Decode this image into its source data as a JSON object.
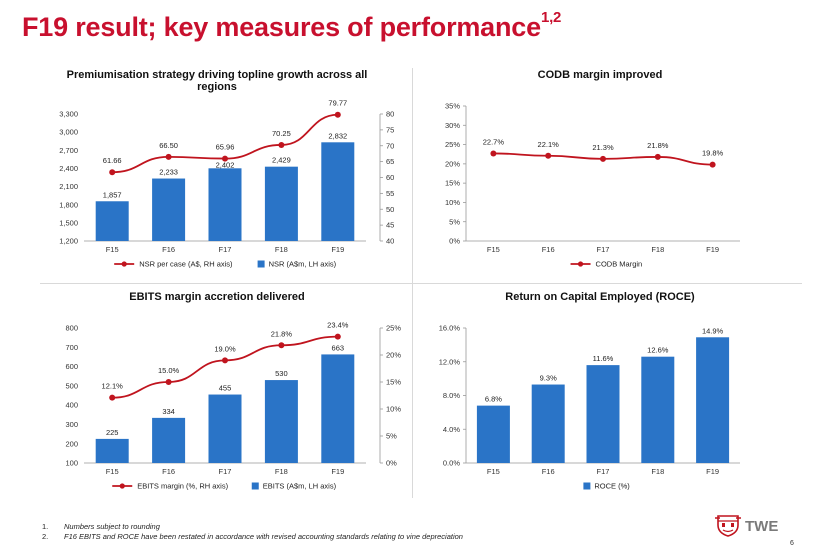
{
  "page": {
    "title": "F19 result; key measures of performance",
    "title_sup": "1,2",
    "page_number": "6",
    "logo_text": "TWE"
  },
  "footnotes": [
    {
      "num": "1.",
      "text": "Numbers subject to rounding"
    },
    {
      "num": "2.",
      "text": "F16 EBITS and ROCE have been restated in accordance with revised accounting standards relating to vine depreciation"
    }
  ],
  "colors": {
    "bar": "#2a74c7",
    "line": "#c0141e",
    "title_red": "#c8102e",
    "axis": "#999999"
  },
  "chart_data": [
    {
      "id": "nsr",
      "type": "bar+line",
      "title": [
        "Premiumisation strategy driving topline growth across all",
        "regions"
      ],
      "categories": [
        "F15",
        "F16",
        "F17",
        "F18",
        "F19"
      ],
      "bar_series": {
        "name": "NSR (A$m, LH axis)",
        "values": [
          1857,
          2233,
          2402,
          2429,
          2832
        ],
        "labels": [
          "1,857",
          "2,233",
          "2,402",
          "2,429",
          "2,832"
        ]
      },
      "line_series": {
        "name": "NSR per case (A$, RH axis)",
        "values": [
          61.66,
          66.5,
          65.96,
          70.25,
          79.77
        ],
        "labels": [
          "61.66",
          "66.50",
          "65.96",
          "70.25",
          "79.77"
        ]
      },
      "left_axis": {
        "min": 1200,
        "max": 3300,
        "ticks": [
          1200,
          1500,
          1800,
          2100,
          2400,
          2700,
          3000,
          3300
        ],
        "tick_labels": [
          "1,200",
          "1,500",
          "1,800",
          "2,100",
          "2,400",
          "2,700",
          "3,000",
          "3,300"
        ]
      },
      "right_axis": {
        "min": 40,
        "max": 80,
        "ticks": [
          40,
          45,
          50,
          55,
          60,
          65,
          70,
          75,
          80
        ],
        "tick_labels": [
          "40",
          "45",
          "50",
          "55",
          "60",
          "65",
          "70",
          "75",
          "80"
        ]
      },
      "legend_order": [
        "line",
        "bar"
      ],
      "legend_placement": "bottom"
    },
    {
      "id": "codb",
      "type": "line",
      "title": [
        "CODB margin improved"
      ],
      "categories": [
        "F15",
        "F16",
        "F17",
        "F18",
        "F19"
      ],
      "line_series": {
        "name": "CODB Margin",
        "values": [
          22.7,
          22.1,
          21.3,
          21.8,
          19.8
        ],
        "labels": [
          "22.7%",
          "22.1%",
          "21.3%",
          "21.8%",
          "19.8%"
        ]
      },
      "left_axis": {
        "min": 0,
        "max": 35,
        "ticks": [
          0,
          5,
          10,
          15,
          20,
          25,
          30,
          35
        ],
        "tick_labels": [
          "0%",
          "5%",
          "10%",
          "15%",
          "20%",
          "25%",
          "30%",
          "35%"
        ]
      },
      "legend_order": [
        "line"
      ],
      "legend_placement": "bottom"
    },
    {
      "id": "ebits",
      "type": "bar+line",
      "title": [
        "EBITS margin accretion delivered"
      ],
      "categories": [
        "F15",
        "F16",
        "F17",
        "F18",
        "F19"
      ],
      "bar_series": {
        "name": "EBITS (A$m, LH axis)",
        "values": [
          225,
          334,
          455,
          530,
          663
        ],
        "labels": [
          "225",
          "334",
          "455",
          "530",
          "663"
        ]
      },
      "line_series": {
        "name": "EBITS margin (%, RH axis)",
        "values": [
          12.1,
          15.0,
          19.0,
          21.8,
          23.4
        ],
        "labels": [
          "12.1%",
          "15.0%",
          "19.0%",
          "21.8%",
          "23.4%"
        ]
      },
      "left_axis": {
        "min": 100,
        "max": 800,
        "ticks": [
          100,
          200,
          300,
          400,
          500,
          600,
          700,
          800
        ],
        "tick_labels": [
          "100",
          "200",
          "300",
          "400",
          "500",
          "600",
          "700",
          "800"
        ]
      },
      "right_axis": {
        "min": 0,
        "max": 25,
        "ticks": [
          0,
          5,
          10,
          15,
          20,
          25
        ],
        "tick_labels": [
          "0%",
          "5%",
          "10%",
          "15%",
          "20%",
          "25%"
        ]
      },
      "legend_order": [
        "line",
        "bar"
      ],
      "legend_placement": "bottom"
    },
    {
      "id": "roce",
      "type": "bar",
      "title": [
        "Return on Capital Employed (ROCE)"
      ],
      "categories": [
        "F15",
        "F16",
        "F17",
        "F18",
        "F19"
      ],
      "bar_series": {
        "name": "ROCE (%)",
        "values": [
          6.8,
          9.3,
          11.6,
          12.6,
          14.9
        ],
        "labels": [
          "6.8%",
          "9.3%",
          "11.6%",
          "12.6%",
          "14.9%"
        ]
      },
      "left_axis": {
        "min": 0,
        "max": 16,
        "ticks": [
          0,
          4,
          8,
          12,
          16
        ],
        "tick_labels": [
          "0.0%",
          "4.0%",
          "8.0%",
          "12.0%",
          "16.0%"
        ]
      },
      "legend_order": [
        "bar"
      ],
      "legend_placement": "bottom"
    }
  ]
}
